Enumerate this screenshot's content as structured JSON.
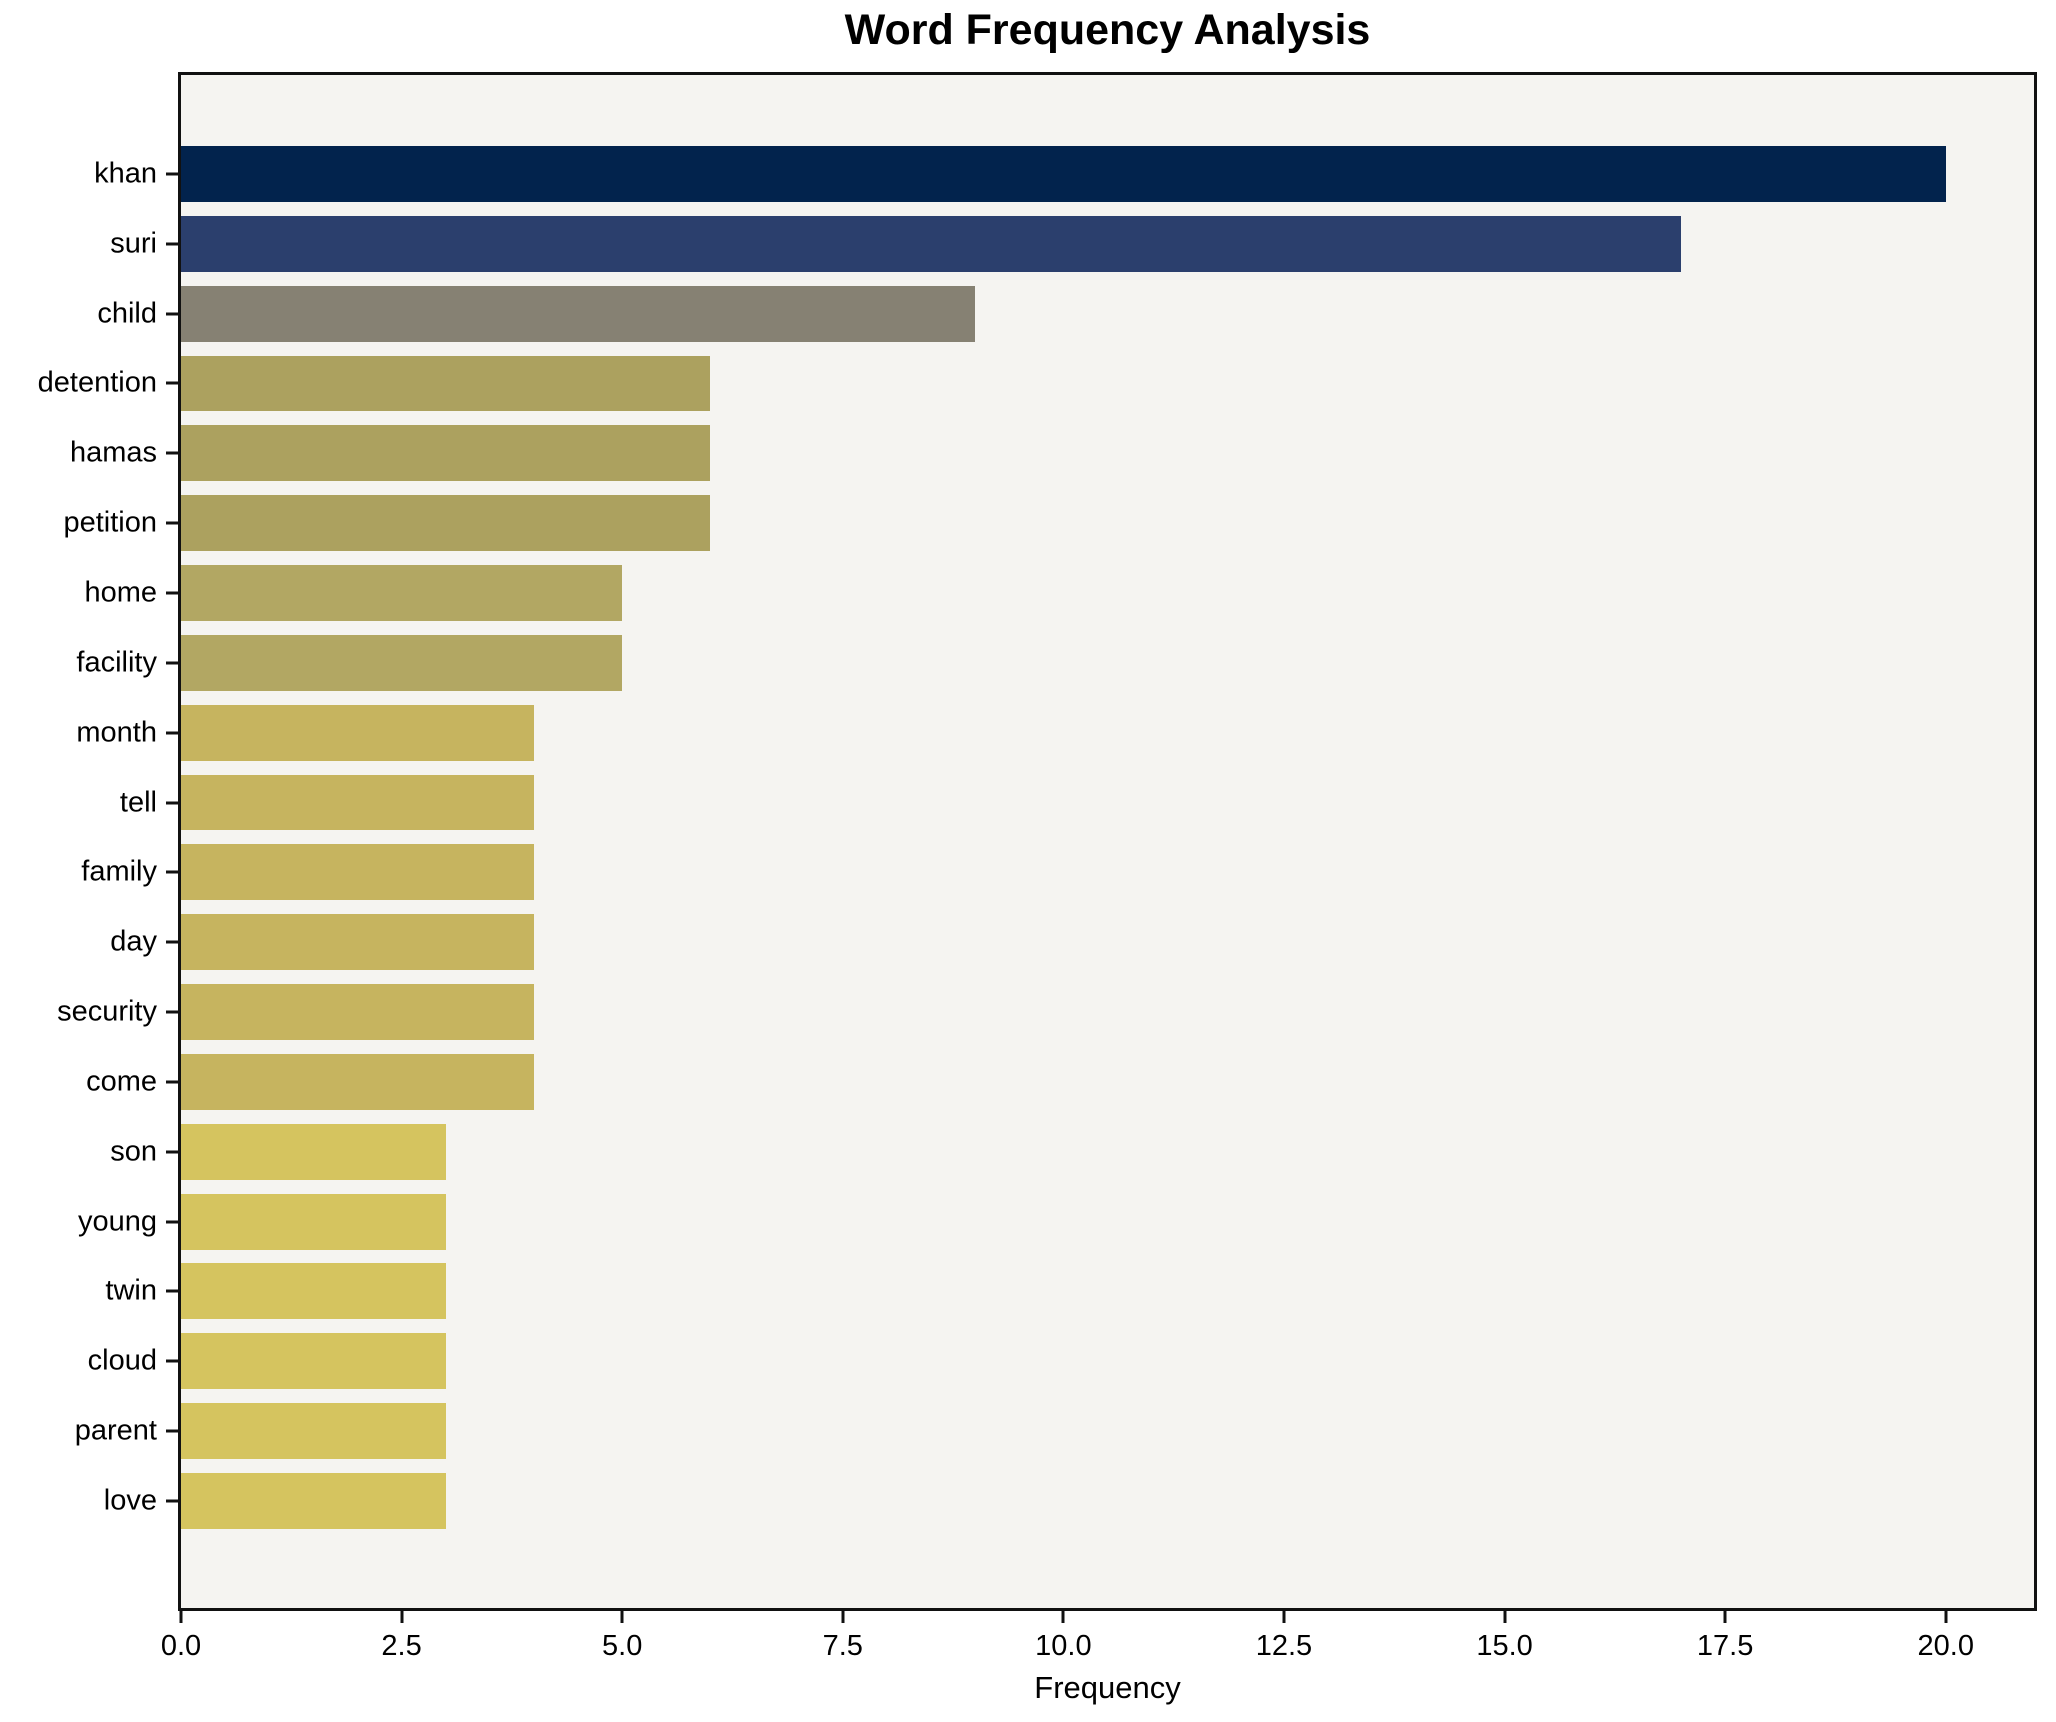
{
  "title": "Word Frequency Analysis",
  "chart_data": {
    "type": "bar",
    "orientation": "horizontal",
    "title": "Word Frequency Analysis",
    "xlabel": "Frequency",
    "ylabel": "",
    "categories": [
      "khan",
      "suri",
      "child",
      "detention",
      "hamas",
      "petition",
      "home",
      "facility",
      "month",
      "tell",
      "family",
      "day",
      "security",
      "come",
      "son",
      "young",
      "twin",
      "cloud",
      "parent",
      "love"
    ],
    "values": [
      20,
      17,
      9,
      6,
      6,
      6,
      5,
      5,
      4,
      4,
      4,
      4,
      4,
      4,
      3,
      3,
      3,
      3,
      3,
      3
    ],
    "bar_colors": [
      "#02234d",
      "#2b3f6d",
      "#868173",
      "#aca15f",
      "#aca15f",
      "#aca15f",
      "#b2a763",
      "#b2a763",
      "#c6b45f",
      "#c6b45f",
      "#c6b45f",
      "#c6b45f",
      "#c6b45f",
      "#c6b45f",
      "#d5c45f",
      "#d5c45f",
      "#d5c45f",
      "#d5c45f",
      "#d5c45f",
      "#d5c45f"
    ],
    "xlim": [
      0,
      21
    ],
    "xticks": [
      0,
      2.5,
      5,
      7.5,
      10,
      12.5,
      15,
      17.5,
      20
    ],
    "xtick_labels": [
      "0.0",
      "2.5",
      "5.0",
      "7.5",
      "10.0",
      "12.5",
      "15.0",
      "17.5",
      "20.0"
    ],
    "grid": false,
    "legend": null,
    "plot_background": "#f5f4f1",
    "figure_background": "#ffffff",
    "bar_height_fraction": 0.8
  }
}
